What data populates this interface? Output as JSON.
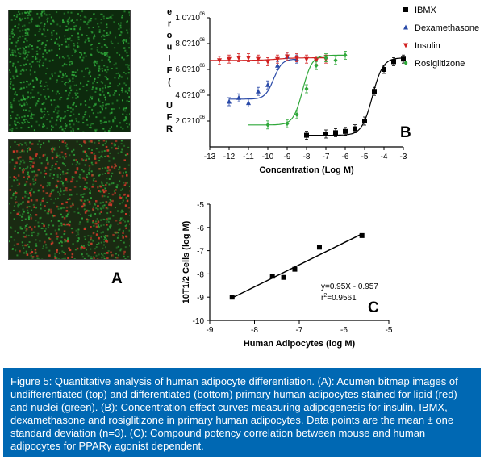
{
  "panel_labels": {
    "a": "A",
    "b": "B",
    "c": "C"
  },
  "images": {
    "top": {
      "description": "undifferentiated",
      "nuclei_color": "#2fa83a"
    },
    "bottom": {
      "description": "differentiated",
      "nuclei_color": "#2fa83a",
      "lipid_color": "#d23a2a"
    }
  },
  "chart_data": [
    {
      "id": "B",
      "type": "line",
      "xlabel": "Concentration (Log M)",
      "ylabel": "UFR  (FluoresceINS)",
      "xlim": [
        -13,
        -3
      ],
      "ylim": [
        0,
        10000000
      ],
      "xticks": [
        "-13",
        "-12",
        "-11",
        "-10",
        "-9",
        "-8",
        "-7",
        "-6",
        "-5",
        "-4",
        "-3"
      ],
      "yticks": [
        {
          "value": 2000000,
          "label": "2.0?10"
        },
        {
          "value": 4000000,
          "label": "4.0?10"
        },
        {
          "value": 6000000,
          "label": "6.0?10"
        },
        {
          "value": 8000000,
          "label": "8.0?10"
        },
        {
          "value": 10000000,
          "label": "1.0?10"
        }
      ],
      "ytick_exponents": [
        "06",
        "06",
        "06",
        "06",
        "06"
      ],
      "ylabel_glyphs": [
        "e",
        "r",
        "o",
        "u",
        "l",
        "F",
        "(",
        "",
        "U",
        "F",
        "R"
      ],
      "legend_position": "top-right",
      "series": [
        {
          "name": "IBMX",
          "color": "#000000",
          "marker": "square",
          "x": [
            -8,
            -7,
            -6.5,
            -6,
            -5.5,
            -5,
            -4.5,
            -4,
            -3.5,
            -3
          ],
          "y": [
            900000,
            1000000,
            1100000,
            1200000,
            1400000,
            2000000,
            4300000,
            6000000,
            6600000,
            6800000
          ]
        },
        {
          "name": "Dexamethasone",
          "color": "#2a4aa8",
          "marker": "triangle-up",
          "x": [
            -12,
            -11.5,
            -11,
            -10.5,
            -10,
            -9.5,
            -9,
            -8.5
          ],
          "y": [
            3500000,
            3800000,
            3400000,
            4300000,
            4800000,
            6300000,
            7000000,
            6800000
          ]
        },
        {
          "name": "Insulin",
          "color": "#d12020",
          "marker": "triangle-down",
          "x": [
            -12.5,
            -12,
            -11.5,
            -11,
            -10.5,
            -10,
            -9.5,
            -9,
            -8.5,
            -8,
            -7.5,
            -7
          ],
          "y": [
            6700000,
            6800000,
            6900000,
            6900000,
            6800000,
            6600000,
            6800000,
            7000000,
            6900000,
            6800000,
            6700000,
            6800000
          ]
        },
        {
          "name": "Rosiglitizone",
          "color": "#2fa83a",
          "marker": "diamond",
          "x": [
            -10,
            -9,
            -8.5,
            -8,
            -7.5,
            -7,
            -6.5,
            -6
          ],
          "y": [
            1700000,
            1800000,
            2500000,
            4500000,
            6300000,
            6900000,
            6700000,
            7100000
          ]
        }
      ],
      "curves": [
        {
          "series": "IBMX",
          "bottom": 900000,
          "top": 6900000,
          "logEC50": -4.6,
          "hill": 1.6,
          "from": -8,
          "to": -3
        },
        {
          "series": "Dexamethasone",
          "bottom": 3700000,
          "top": 6800000,
          "logEC50": -9.7,
          "hill": 2.0,
          "from": -12,
          "to": -8.5
        },
        {
          "series": "Insulin",
          "bottom": 6700000,
          "top": 6900000,
          "logEC50": -9.5,
          "hill": 1.0,
          "from": -13,
          "to": -7
        },
        {
          "series": "Rosiglitizone",
          "bottom": 1700000,
          "top": 7100000,
          "logEC50": -8.2,
          "hill": 1.8,
          "from": -11,
          "to": -6
        }
      ]
    },
    {
      "id": "C",
      "type": "scatter",
      "xlabel": "Human Adipocytes (log M)",
      "ylabel": "10T1/2  Cells (log M)",
      "xlim": [
        -9,
        -5
      ],
      "ylim": [
        -10,
        -5
      ],
      "xticks": [
        "-9",
        "-8",
        "-7",
        "-6",
        "-5"
      ],
      "yticks": [
        "-10",
        "-9",
        "-8",
        "-7",
        "-6",
        "-5"
      ],
      "grid": false,
      "series": [
        {
          "color": "#000000",
          "marker": "square",
          "x": [
            -8.5,
            -7.6,
            -7.35,
            -7.1,
            -6.55,
            -5.6
          ],
          "y": [
            -9.0,
            -8.1,
            -8.15,
            -7.8,
            -6.85,
            -6.35
          ]
        }
      ],
      "fit_line": {
        "slope": 0.95,
        "intercept": -0.957,
        "from": -8.5,
        "to": -5.6
      },
      "annotation": {
        "equation": "y=0.95X - 0.957",
        "r2_prefix": "r",
        "r2_sup": "2",
        "r2_value": "=0.9561"
      }
    }
  ],
  "caption": {
    "line1": "Figure 5: Quantitative analysis of human adipocyte differentiation.  (A): Acumen bitmap images of",
    "line2": "undifferentiated (top) and differentiated (bottom) primary human adipocytes stained for lipid (red)",
    "line3": "and nuclei (green). (B): Concentration-effect curves measuring adipogenesis for insulin, IBMX,",
    "line4": "dexamethasone and rosiglitizone in primary human adipocytes.  Data points are the mean ± one",
    "line5": "standard deviation (n=3). (C): Compound potency correlation between mouse and human",
    "line6": "adipocytes for PPARγ agonist dependent."
  }
}
